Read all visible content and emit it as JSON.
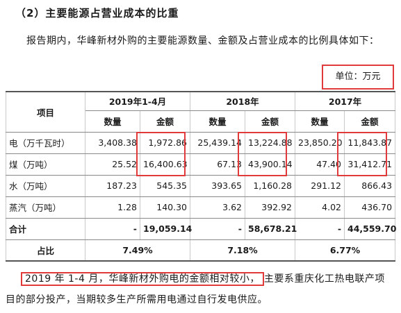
{
  "heading": "（2）主要能源占营业成本的比重",
  "intro": "报告期内，华峰新材外购的主要能源数量、金额及占营业成本的比例具体如下：",
  "unit": "单位：万元",
  "table": {
    "item_header": "项目",
    "years": [
      "2019年1-4月",
      "2018年",
      "2017年"
    ],
    "sub_headers": [
      "数量",
      "金额",
      "数量",
      "金额",
      "数量",
      "金额"
    ],
    "rows": [
      {
        "label": "电（万千瓦时）",
        "values": [
          "3,408.38",
          "1,972.86",
          "25,439.14",
          "13,224.88",
          "23,850.20",
          "11,843.87"
        ]
      },
      {
        "label": "煤（万吨）",
        "values": [
          "25.52",
          "16,400.63",
          "67.13",
          "43,900.14",
          "47.40",
          "31,412.71"
        ]
      },
      {
        "label": "水（万吨）",
        "values": [
          "187.23",
          "545.35",
          "393.65",
          "1,160.28",
          "291.12",
          "866.43"
        ]
      },
      {
        "label": "蒸汽（万吨）",
        "values": [
          "1.28",
          "140.30",
          "3.62",
          "392.92",
          "4.02",
          "436.70"
        ]
      },
      {
        "label": "合计",
        "values": [
          "-",
          "19,059.14",
          "-",
          "58,678.21",
          "-",
          "44,559.70"
        ]
      }
    ],
    "ratio": {
      "label": "占比",
      "values": [
        "7.49%",
        "7.18%",
        "6.77%"
      ]
    }
  },
  "conclusion": {
    "highlighted": "2019 年 1-4 月，华峰新材外购电的金额相对较小，",
    "rest": "主要系重庆化工热电联产项目的部分投产，当期较多生产所需用电通过自行发电供应。"
  },
  "highlight_color": "#e03a3a"
}
